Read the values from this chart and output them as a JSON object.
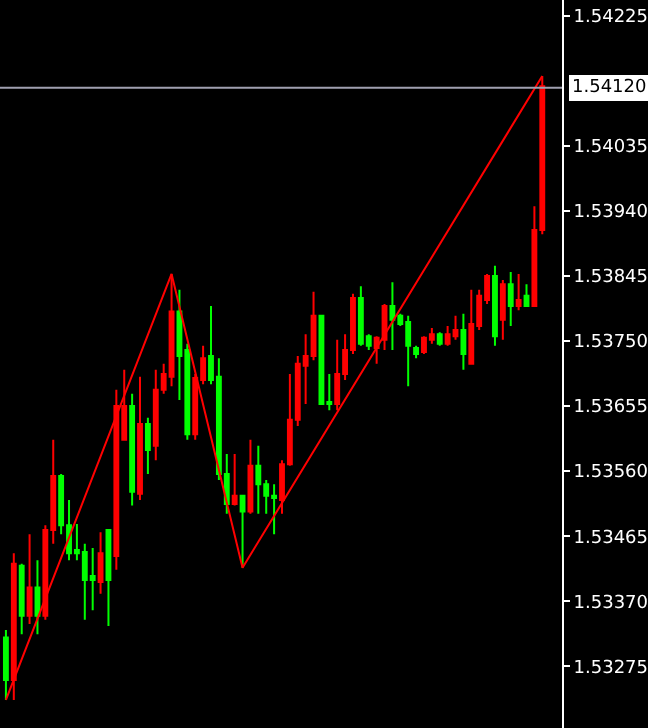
{
  "chart_data": {
    "type": "candlestick",
    "categories": [
      null,
      null,
      null,
      null,
      null,
      null,
      null,
      null,
      null,
      null,
      null,
      null,
      null,
      null,
      null,
      null,
      null,
      null,
      null,
      null,
      null,
      null,
      null,
      null,
      null,
      null,
      null,
      null,
      null,
      null,
      null,
      null,
      null,
      null,
      null,
      null,
      null,
      null,
      null,
      null,
      null,
      null,
      null,
      null,
      null,
      null,
      null,
      null,
      null,
      null,
      null,
      null,
      null,
      null,
      null,
      null,
      null,
      null,
      null,
      null,
      null,
      null,
      null,
      null,
      null,
      null,
      null,
      null,
      null
    ],
    "ohlc": [
      [
        1.53317,
        1.53328,
        1.53226,
        1.53255
      ],
      [
        1.53255,
        1.5344,
        1.53226,
        1.53425
      ],
      [
        1.53422,
        1.53425,
        1.53322,
        1.53349
      ],
      [
        1.53349,
        1.53468,
        1.53337,
        1.5339
      ],
      [
        1.5339,
        1.5343,
        1.53322,
        1.53349
      ],
      [
        1.53349,
        1.53481,
        1.53343,
        1.53474
      ],
      [
        1.53474,
        1.53606,
        1.53454,
        1.53553
      ],
      [
        1.53553,
        1.53556,
        1.53468,
        1.53481
      ],
      [
        1.53481,
        1.53518,
        1.5343,
        1.5344
      ],
      [
        1.53445,
        1.53483,
        1.5343,
        1.5344
      ],
      [
        1.53442,
        1.53454,
        1.53343,
        1.53401
      ],
      [
        1.53407,
        1.53448,
        1.53357,
        1.53401
      ],
      [
        1.53398,
        1.53471,
        1.53381,
        1.5344
      ],
      [
        1.53474,
        1.53474,
        1.53334,
        1.53401
      ],
      [
        1.53436,
        1.53679,
        1.53416,
        1.53655
      ],
      [
        1.53606,
        1.53708,
        1.53606,
        1.53655
      ],
      [
        1.53655,
        1.53673,
        1.5351,
        1.5353
      ],
      [
        1.53527,
        1.53698,
        1.53518,
        1.53629
      ],
      [
        1.53629,
        1.53638,
        1.53556,
        1.53591
      ],
      [
        1.53597,
        1.53708,
        1.53576,
        1.53679
      ],
      [
        1.53679,
        1.53717,
        1.53673,
        1.53702
      ],
      [
        1.53698,
        1.53848,
        1.53684,
        1.53793
      ],
      [
        1.53793,
        1.53825,
        1.53664,
        1.53728
      ],
      [
        1.53737,
        1.53746,
        1.53606,
        1.53614
      ],
      [
        1.53614,
        1.53702,
        1.53606,
        1.53696
      ],
      [
        1.53693,
        1.53743,
        1.53687,
        1.53725
      ],
      [
        1.53728,
        1.53801,
        1.53687,
        1.53693
      ],
      [
        1.53698,
        1.53725,
        1.53547,
        1.53556
      ],
      [
        1.53556,
        1.53585,
        1.53498,
        1.53512
      ],
      [
        1.53512,
        1.53585,
        1.5351,
        1.53524
      ],
      [
        1.53524,
        1.53524,
        1.53419,
        1.53501
      ],
      [
        1.53501,
        1.53606,
        1.53498,
        1.53568
      ],
      [
        1.53568,
        1.53597,
        1.53498,
        1.53541
      ],
      [
        1.53541,
        1.53547,
        1.53498,
        1.53524
      ],
      [
        1.53524,
        1.53541,
        1.53468,
        1.53521
      ],
      [
        1.53518,
        1.53576,
        1.53498,
        1.5357
      ],
      [
        1.5357,
        1.53702,
        1.53568,
        1.53635
      ],
      [
        1.53635,
        1.53728,
        1.53626,
        1.53717
      ],
      [
        1.53714,
        1.5376,
        1.53658,
        1.53728
      ],
      [
        1.53728,
        1.53822,
        1.53722,
        1.53787
      ],
      [
        1.53787,
        1.53787,
        1.53658,
        1.53658
      ],
      [
        1.53661,
        1.53702,
        1.53649,
        1.53658
      ],
      [
        1.53658,
        1.53752,
        1.53649,
        1.53702
      ],
      [
        1.53702,
        1.5376,
        1.53693,
        1.53737
      ],
      [
        1.53737,
        1.53819,
        1.53731,
        1.53813
      ],
      [
        1.53813,
        1.5383,
        1.53743,
        1.53746
      ],
      [
        1.53757,
        1.5376,
        1.53737,
        1.53743
      ],
      [
        1.5374,
        1.53757,
        1.53717,
        1.53755
      ],
      [
        1.53752,
        1.53804,
        1.53737,
        1.53801
      ],
      [
        1.53801,
        1.53836,
        1.53737,
        1.53781
      ],
      [
        1.53787,
        1.5379,
        1.53772,
        1.53775
      ],
      [
        1.53778,
        1.53787,
        1.53684,
        1.53743
      ],
      [
        1.5374,
        1.53743,
        1.53725,
        1.53731
      ],
      [
        1.53734,
        1.53757,
        1.53731,
        1.53755
      ],
      [
        1.53752,
        1.53769,
        1.53746,
        1.5376
      ],
      [
        1.5376,
        1.53763,
        1.53743,
        1.53746
      ],
      [
        1.53746,
        1.53772,
        1.53743,
        1.5376
      ],
      [
        1.53757,
        1.53787,
        1.53752,
        1.53766
      ],
      [
        1.53766,
        1.5379,
        1.53708,
        1.53731
      ],
      [
        1.53717,
        1.53825,
        1.53717,
        1.53775
      ],
      [
        1.53772,
        1.53825,
        1.53766,
        1.53816
      ],
      [
        1.5381,
        1.53848,
        1.53804,
        1.53845
      ],
      [
        1.53845,
        1.5386,
        1.53743,
        1.53757
      ],
      [
        1.53781,
        1.53839,
        1.53752,
        1.53833
      ],
      [
        1.53833,
        1.53851,
        1.53772,
        1.53801
      ],
      [
        1.53801,
        1.53848,
        1.53795,
        1.5381
      ],
      [
        1.53816,
        1.53833,
        1.53801,
        1.53801
      ],
      [
        1.53801,
        1.53947,
        1.53801,
        1.53912
      ],
      [
        1.53912,
        1.54137,
        1.53906,
        1.54122
      ]
    ],
    "colors": [
      "#00ff00",
      "#ff0000",
      "#00ff00",
      "#ff0000",
      "#00ff00",
      "#ff0000",
      "#ff0000",
      "#00ff00",
      "#00ff00",
      "#00ff00",
      "#00ff00",
      "#00ff00",
      "#ff0000",
      "#00ff00",
      "#ff0000",
      "#ff0000",
      "#00ff00",
      "#ff0000",
      "#00ff00",
      "#ff0000",
      "#ff0000",
      "#ff0000",
      "#00ff00",
      "#00ff00",
      "#ff0000",
      "#ff0000",
      "#00ff00",
      "#00ff00",
      "#00ff00",
      "#ff0000",
      "#00ff00",
      "#ff0000",
      "#00ff00",
      "#00ff00",
      "#00ff00",
      "#ff0000",
      "#ff0000",
      "#ff0000",
      "#ff0000",
      "#ff0000",
      "#00ff00",
      "#00ff00",
      "#ff0000",
      "#ff0000",
      "#ff0000",
      "#00ff00",
      "#00ff00",
      "#ff0000",
      "#ff0000",
      "#00ff00",
      "#00ff00",
      "#00ff00",
      "#00ff00",
      "#ff0000",
      "#ff0000",
      "#00ff00",
      "#ff0000",
      "#ff0000",
      "#00ff00",
      "#ff0000",
      "#ff0000",
      "#ff0000",
      "#00ff00",
      "#ff0000",
      "#00ff00",
      "#ff0000",
      "#00ff00",
      "#ff0000",
      "#ff0000"
    ],
    "series": [
      {
        "type": "line",
        "color": "#ff0000",
        "values": [
          1.53226,
          null,
          null,
          null,
          null,
          null,
          null,
          null,
          null,
          null,
          null,
          null,
          null,
          null,
          null,
          null,
          null,
          null,
          null,
          null,
          null,
          1.53848,
          null,
          null,
          null,
          null,
          null,
          null,
          null,
          null,
          1.53419,
          null,
          null,
          null,
          null,
          null,
          null,
          null,
          null,
          null,
          null,
          null,
          null,
          null,
          null,
          null,
          null,
          null,
          null,
          null,
          null,
          null,
          null,
          null,
          null,
          null,
          null,
          null,
          null,
          null,
          null,
          null,
          null,
          null,
          null,
          null,
          null,
          null,
          1.54137
        ]
      }
    ],
    "ylim": [
      1.53185,
      1.54248
    ],
    "yticks": [
      {
        "value": 1.53275,
        "label": "1.53275"
      },
      {
        "value": 1.5337,
        "label": "1.53370"
      },
      {
        "value": 1.53465,
        "label": "1.53465"
      },
      {
        "value": 1.5356,
        "label": "1.53560"
      },
      {
        "value": 1.53655,
        "label": "1.53655"
      },
      {
        "value": 1.5375,
        "label": "1.53750"
      },
      {
        "value": 1.53845,
        "label": "1.53845"
      },
      {
        "value": 1.5394,
        "label": "1.53940"
      },
      {
        "value": 1.54035,
        "label": "1.54035"
      },
      {
        "value": 1.54225,
        "label": "1.54225"
      }
    ],
    "ref_lines": [
      {
        "axis": "y",
        "value": 1.5412,
        "label": "1.54120",
        "color": "#a0a0b0"
      }
    ],
    "tick_labels": "y",
    "grid": false
  }
}
